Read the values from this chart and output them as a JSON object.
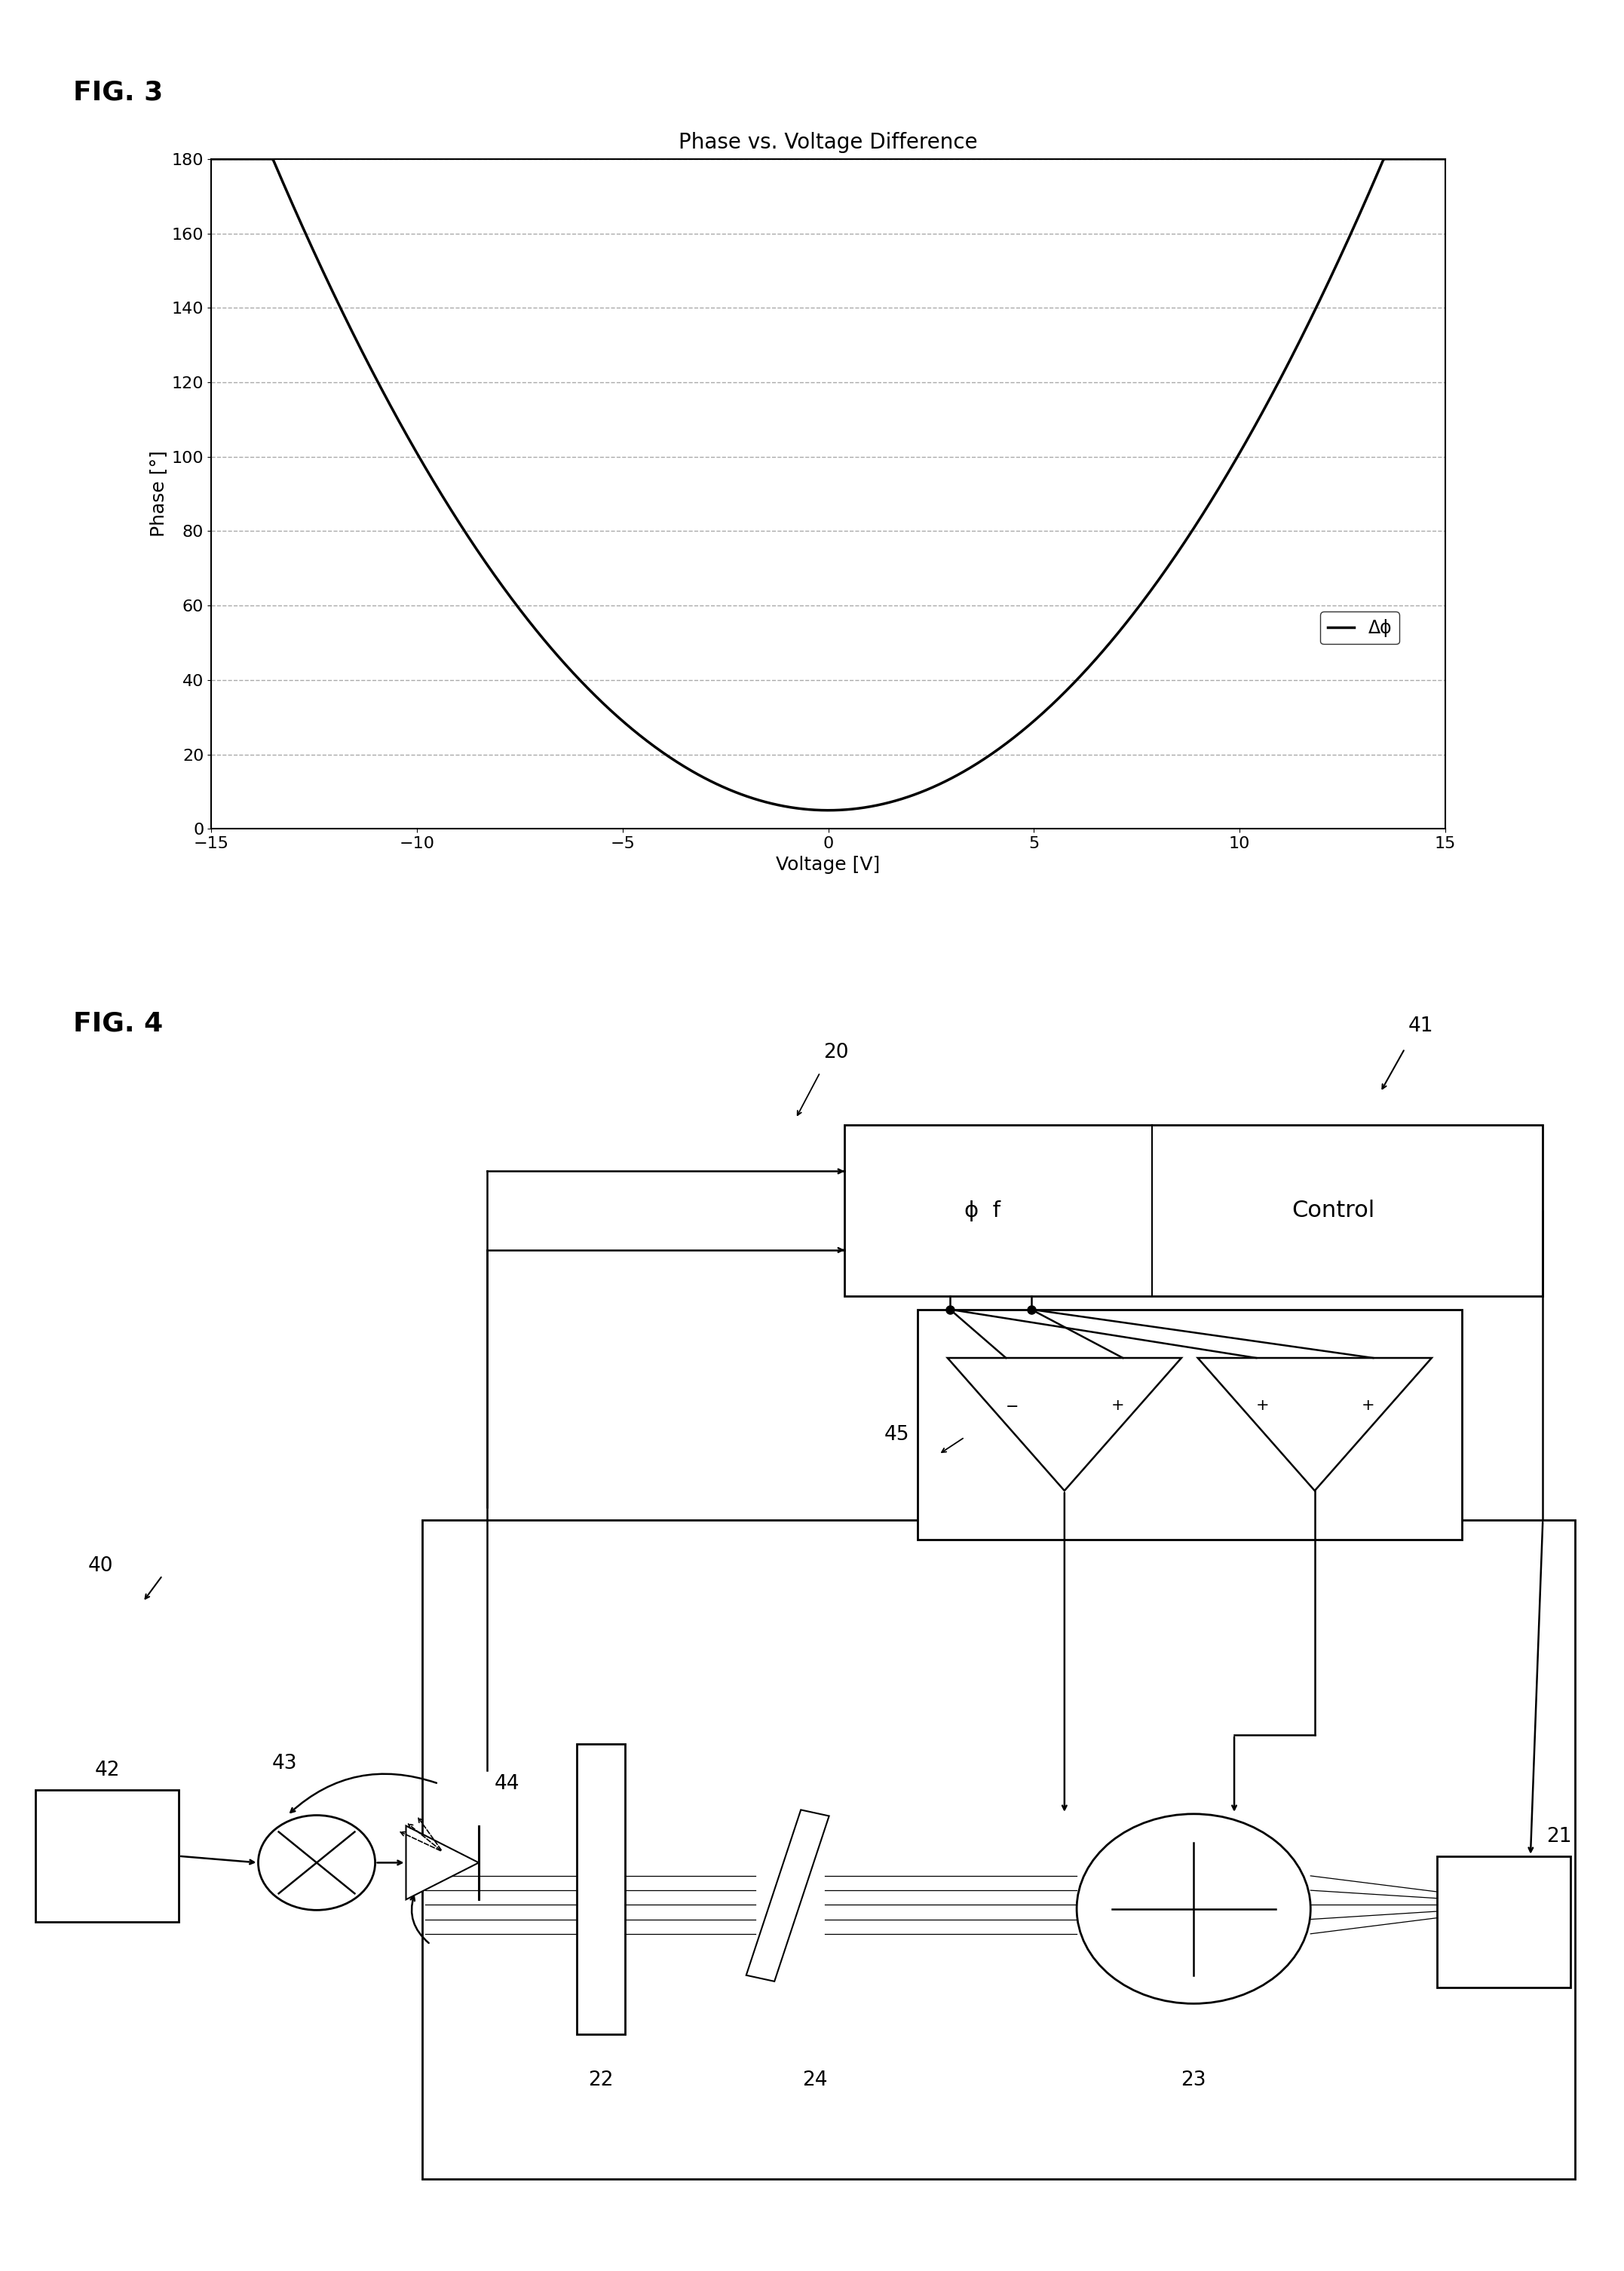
{
  "fig3_title": "Phase vs. Voltage Difference",
  "fig3_xlabel": "Voltage [V]",
  "fig3_ylabel": "Phase [°]",
  "fig3_xlim": [
    -15,
    15
  ],
  "fig3_ylim": [
    0,
    180
  ],
  "fig3_yticks": [
    0,
    20,
    40,
    60,
    80,
    100,
    120,
    140,
    160,
    180
  ],
  "fig3_xticks": [
    -15,
    -10,
    -5,
    0,
    5,
    10,
    15
  ],
  "legend_label": "Δϕ",
  "background_color": "#ffffff",
  "line_color": "#000000",
  "grid_color": "#aaaaaa",
  "fig3_label": "FIG. 3",
  "fig4_label": "FIG. 4",
  "label_40": "40",
  "label_41": "41",
  "label_42": "42",
  "label_43": "43",
  "label_44": "44",
  "label_45": "45",
  "label_20": "20",
  "label_21": "21",
  "label_22": "22",
  "label_23": "23",
  "label_24": "24",
  "control_label": "Control",
  "phi_f_label": "ϕ  f"
}
